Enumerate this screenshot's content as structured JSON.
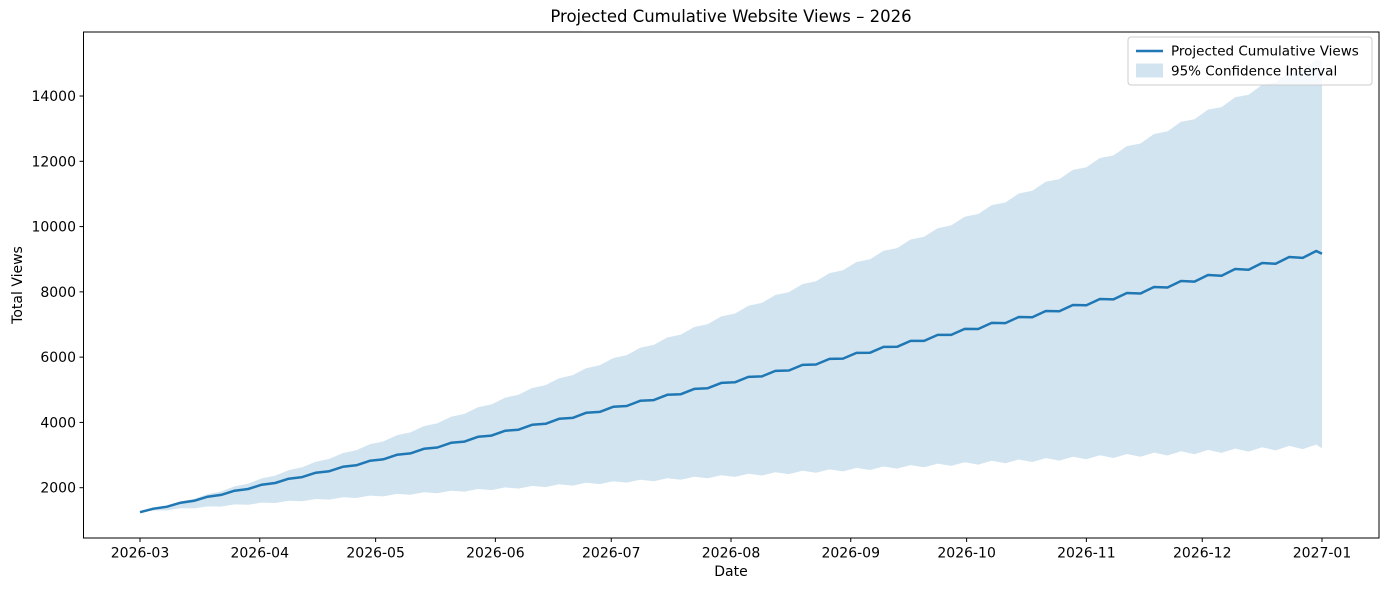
{
  "figure": {
    "background": "#ffffff",
    "accent_color": "#1f77b4",
    "band_fill_color": "#1f77b4",
    "band_opacity": 0.2
  },
  "legend": {
    "position": "upper right",
    "items": [
      {
        "label": "Projected Cumulative Views",
        "type": "line",
        "color": "#1f77b4"
      },
      {
        "label": "95% Confidence Interval",
        "type": "patch",
        "color": "#1f77b4",
        "opacity": 0.2
      }
    ]
  },
  "chart_data": {
    "type": "line",
    "title": "Projected Cumulative Website Views – 2026",
    "xlabel": "Date",
    "ylabel": "Total Views",
    "grid": false,
    "legend_position": "upper right",
    "x_start_date": "2026-03-01",
    "x_end_date": "2027-01-01",
    "x_range_days": 306,
    "x_tick_labels": [
      "2026-03",
      "2026-04",
      "2026-05",
      "2026-06",
      "2026-07",
      "2026-08",
      "2026-09",
      "2026-10",
      "2026-11",
      "2026-12",
      "2027-01"
    ],
    "x_tick_days": [
      0,
      31,
      61,
      92,
      122,
      153,
      184,
      214,
      245,
      275,
      306
    ],
    "y_ticks": [
      2000,
      4000,
      6000,
      8000,
      10000,
      12000,
      14000
    ],
    "ylim": [
      460,
      15960
    ],
    "series": [
      {
        "name": "Projected Cumulative Views",
        "color": "#1f77b4",
        "dates": [
          "2026-03-01",
          "2026-04-01",
          "2026-05-01",
          "2026-06-01",
          "2026-07-01",
          "2026-08-01",
          "2026-09-01",
          "2026-10-01",
          "2026-11-01",
          "2026-12-01",
          "2027-01-01"
        ],
        "values": [
          1250,
          2060,
          2840,
          3650,
          4430,
          5240,
          6050,
          6830,
          7640,
          8420,
          9230
        ]
      }
    ],
    "band": {
      "name": "95% Confidence Interval",
      "dates": [
        "2026-03-01",
        "2026-04-01",
        "2026-05-01",
        "2026-06-01",
        "2026-07-01",
        "2026-08-01",
        "2026-09-01",
        "2026-10-01",
        "2026-11-01",
        "2026-12-01",
        "2027-01-01"
      ],
      "upper": [
        1250,
        2250,
        3370,
        4620,
        5920,
        7330,
        8800,
        10280,
        11870,
        13450,
        15130
      ],
      "lower": [
        1250,
        1520,
        1745,
        1955,
        2160,
        2360,
        2555,
        2735,
        2920,
        3095,
        3270
      ]
    },
    "render": {
      "trend_start": 1250,
      "trend_end": 9230,
      "upper_end_width": 5900,
      "upper_exponent": 1.5,
      "lower_end_width": 5960,
      "lower_exponent": 1.05,
      "wiggle_amp_start": 15,
      "wiggle_amp_end": 60,
      "wiggle_step_days": 3.5
    }
  }
}
